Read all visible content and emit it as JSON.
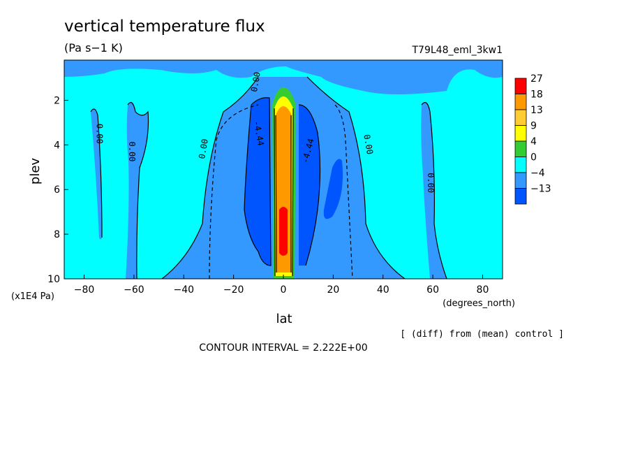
{
  "chart_data": {
    "type": "heatmap",
    "title": "vertical temperature flux",
    "units": "(Pa s−1 K)",
    "run_label": "T79L48_eml_3kw1",
    "xlabel": "lat",
    "x_units": "(degrees_north)",
    "ylabel": "plev",
    "y_units": "(x1E4 Pa)",
    "xlim": [
      -88,
      88
    ],
    "ylim": [
      10,
      0.2
    ],
    "x_ticks": [
      -80,
      -60,
      -40,
      -20,
      0,
      20,
      40,
      60,
      80
    ],
    "x_tick_labels": [
      "−80",
      "−60",
      "−40",
      "−20",
      "0",
      "20",
      "40",
      "60",
      "80"
    ],
    "y_ticks": [
      2,
      4,
      6,
      8,
      10
    ],
    "y_tick_labels": [
      "2",
      "4",
      "6",
      "8",
      "10"
    ],
    "grid": false,
    "legend_placement": "right",
    "colorbar": {
      "labels": [
        "27",
        "18",
        "13",
        "9",
        "4",
        "0",
        "−4",
        "−13"
      ],
      "colors": [
        "#ff0000",
        "#ff9900",
        "#ffcc33",
        "#ffff00",
        "#33cc33",
        "#00ffff",
        "#3399ff",
        "#0055ff"
      ]
    },
    "colors": {
      "background_fill": "#00ffff",
      "light_negative": "#3399ff",
      "strong_negative": "#0055ff",
      "positive_orange": "#ff9900",
      "core_red": "#ff0000",
      "green": "#33cc33",
      "yellow": "#ffff00"
    },
    "contour_labels": [
      {
        "text": "0.00",
        "x": -75,
        "y": 3.5,
        "rotate": 90
      },
      {
        "text": "0.00",
        "x": -62,
        "y": 4.3,
        "rotate": 90
      },
      {
        "text": "0.00",
        "x": -31,
        "y": 4.2,
        "rotate": -80
      },
      {
        "text": "0.00",
        "x": -10,
        "y": 1.2,
        "rotate": -80
      },
      {
        "text": "-4.44",
        "x": -11,
        "y": 3.5,
        "rotate": 80
      },
      {
        "text": "-4.44",
        "x": 11,
        "y": 4.3,
        "rotate": -75
      },
      {
        "text": "0.00",
        "x": 33,
        "y": 4.0,
        "rotate": 80
      },
      {
        "text": "0.00",
        "x": 58,
        "y": 5.7,
        "rotate": 90
      }
    ],
    "footnote_diff": "[ (diff) from (mean) control ]",
    "contour_interval": "CONTOUR INTERVAL = 2.222E+00"
  }
}
